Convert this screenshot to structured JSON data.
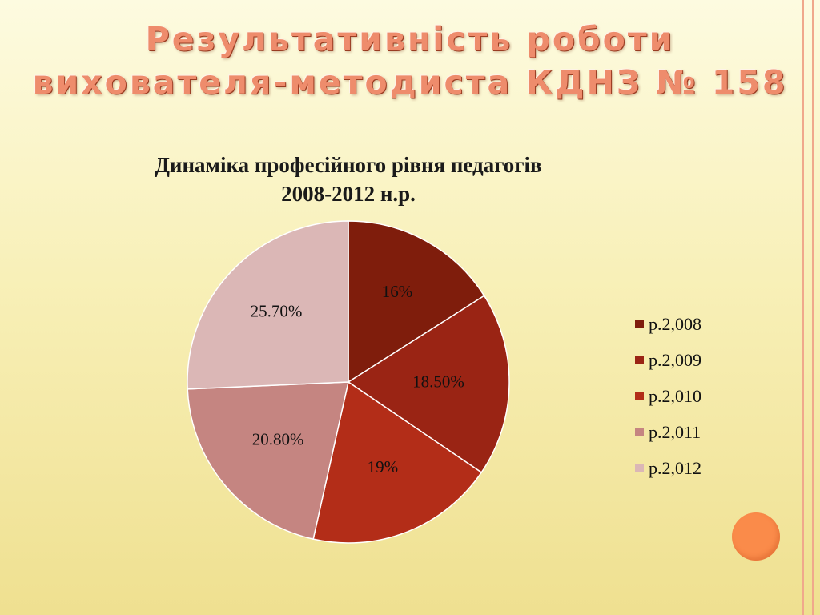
{
  "slide": {
    "title_lines": [
      "Результативність роботи",
      "вихователя-методиста КДНЗ № 158"
    ]
  },
  "chart_data": {
    "type": "pie",
    "title_lines": [
      "Динаміка професійного рівня педагогів",
      "2008-2012 н.р."
    ],
    "categories": [
      "р.2,008",
      "р.2,009",
      "р.2,010",
      "р.2,011",
      "р.2,012"
    ],
    "values": [
      16,
      18.5,
      19,
      20.8,
      25.7
    ],
    "data_labels": [
      "16%",
      "18.50%",
      "19%",
      "20.80%",
      "25.70%"
    ],
    "colors": [
      "#7f1d0c",
      "#9a2414",
      "#b32d18",
      "#c58581",
      "#dbb7b6"
    ],
    "legend_position": "right"
  },
  "theme": {
    "title_color": "#ee8c6c",
    "accent_dot": "#fa8b4a",
    "rule_color": "#f0a88c"
  }
}
